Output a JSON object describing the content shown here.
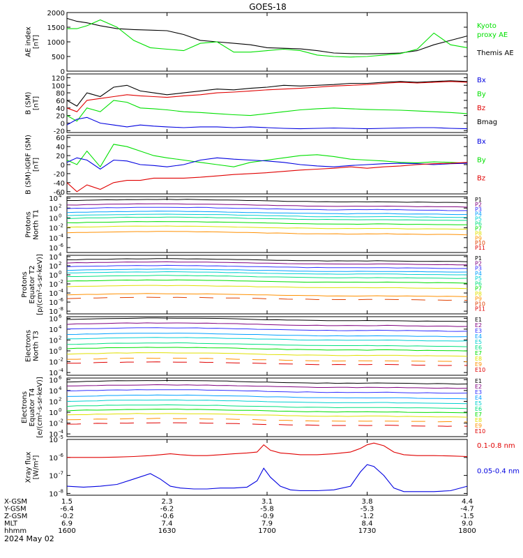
{
  "title": "GOES-18",
  "date": "2024 May 02",
  "time_axis": {
    "tick_times": [
      "1600",
      "1630",
      "1700",
      "1730",
      "1800"
    ],
    "rows": [
      {
        "label": "X-GSM",
        "values": [
          "1.5",
          "2.3",
          "3.1",
          "3.8",
          "4.4"
        ]
      },
      {
        "label": "Y-GSM",
        "values": [
          "-6.4",
          "-6.2",
          "-5.8",
          "-5.3",
          "-4.7"
        ]
      },
      {
        "label": "Z-GSM",
        "values": [
          "-0.2",
          "-0.6",
          "-0.9",
          "-1.2",
          "-1.5"
        ]
      },
      {
        "label": "MLT",
        "values": [
          "6.9",
          "7.4",
          "7.9",
          "8.4",
          "9.0"
        ]
      },
      {
        "label": "hhmm",
        "values": [
          "1600",
          "1630",
          "1700",
          "1730",
          "1800"
        ]
      }
    ]
  },
  "colors": {
    "black": "#000000",
    "green": "#00e000",
    "red": "#e00000",
    "blue": "#0000e0",
    "P": [
      "#000000",
      "#800080",
      "#3030ff",
      "#00a0ff",
      "#00d0d0",
      "#00e080",
      "#00e000",
      "#e0e000",
      "#ff9000",
      "#e04000",
      "#e00000"
    ],
    "E": [
      "#000000",
      "#800080",
      "#3030ff",
      "#00a0ff",
      "#00d0d0",
      "#00e080",
      "#00e000",
      "#e0e000",
      "#ff9000",
      "#e00000"
    ]
  },
  "chart_data": [
    {
      "type": "line",
      "ylabel": [
        "AE index",
        "[nT]"
      ],
      "ylim": [
        0,
        2000
      ],
      "yticks": [
        {
          "v": 0,
          "t": "0"
        },
        {
          "v": 500,
          "t": "500"
        },
        {
          "v": 1000,
          "t": "1000"
        },
        {
          "v": 1500,
          "t": "1500"
        },
        {
          "v": 2000,
          "t": "2000"
        }
      ],
      "legend": [
        {
          "text": "Kyoto",
          "color": "#00e000"
        },
        {
          "text": "proxy AE",
          "color": "#00e000"
        },
        {
          "text": "",
          "color": "#000"
        },
        {
          "text": "Themis AE",
          "color": "#000000"
        }
      ],
      "x": [
        0,
        3,
        6,
        10,
        15,
        20,
        25,
        30,
        35,
        40,
        45,
        50,
        55,
        60,
        65,
        70,
        75,
        80,
        85,
        90,
        95,
        100,
        105,
        110,
        115,
        120
      ],
      "series": [
        {
          "name": "Themis AE",
          "color": "#000000",
          "values": [
            1800,
            1700,
            1650,
            1550,
            1450,
            1420,
            1400,
            1380,
            1250,
            1050,
            1000,
            950,
            900,
            800,
            780,
            760,
            700,
            620,
            600,
            590,
            600,
            620,
            700,
            900,
            1050,
            1200
          ]
        },
        {
          "name": "Kyoto proxy AE",
          "color": "#00e000",
          "values": [
            1450,
            1450,
            1550,
            1750,
            1500,
            1050,
            800,
            750,
            700,
            950,
            1000,
            650,
            650,
            700,
            750,
            700,
            550,
            500,
            480,
            500,
            550,
            600,
            750,
            1300,
            900,
            800
          ]
        }
      ]
    },
    {
      "type": "line",
      "ylabel": [
        "B (SM)",
        "[nT]"
      ],
      "ylim": [
        -25,
        130
      ],
      "yticks": [
        {
          "v": -20,
          "t": "-20"
        },
        {
          "v": 0,
          "t": "0"
        },
        {
          "v": 20,
          "t": "20"
        },
        {
          "v": 40,
          "t": "40"
        },
        {
          "v": 60,
          "t": "60"
        },
        {
          "v": 80,
          "t": "80"
        },
        {
          "v": 100,
          "t": "100"
        },
        {
          "v": 120,
          "t": "120"
        }
      ],
      "legend": [
        {
          "text": "Bx",
          "color": "#0000e0"
        },
        {
          "text": "By",
          "color": "#00e000"
        },
        {
          "text": "Bz",
          "color": "#e00000"
        },
        {
          "text": "Bmag",
          "color": "#000000"
        }
      ],
      "x": [
        0,
        3,
        6,
        10,
        14,
        18,
        22,
        26,
        30,
        35,
        40,
        45,
        50,
        55,
        60,
        65,
        70,
        75,
        80,
        85,
        90,
        95,
        100,
        105,
        110,
        115,
        120
      ],
      "series": [
        {
          "name": "Bmag",
          "color": "#000000",
          "values": [
            60,
            45,
            80,
            70,
            95,
            100,
            85,
            80,
            75,
            80,
            85,
            90,
            88,
            92,
            95,
            100,
            98,
            100,
            102,
            105,
            105,
            108,
            110,
            108,
            110,
            112,
            110
          ]
        },
        {
          "name": "Bz",
          "color": "#e00000",
          "values": [
            40,
            30,
            60,
            65,
            70,
            75,
            72,
            70,
            68,
            72,
            75,
            80,
            82,
            85,
            88,
            90,
            92,
            95,
            98,
            100,
            102,
            105,
            108,
            106,
            108,
            110,
            108
          ]
        },
        {
          "name": "By",
          "color": "#00e000",
          "values": [
            20,
            5,
            40,
            30,
            60,
            55,
            40,
            38,
            35,
            30,
            28,
            25,
            22,
            20,
            25,
            30,
            35,
            38,
            40,
            38,
            36,
            35,
            34,
            32,
            30,
            28,
            25
          ]
        },
        {
          "name": "Bx",
          "color": "#0000e0",
          "values": [
            -5,
            10,
            15,
            0,
            -5,
            -10,
            -5,
            -8,
            -10,
            -12,
            -10,
            -10,
            -12,
            -10,
            -12,
            -14,
            -15,
            -14,
            -13,
            -14,
            -15,
            -14,
            -13,
            -12,
            -12,
            -14,
            -15
          ]
        }
      ]
    },
    {
      "type": "line",
      "ylabel": [
        "B (SM)-IGRF (SM)",
        "[nT]"
      ],
      "ylim": [
        -65,
        65
      ],
      "yticks": [
        {
          "v": -60,
          "t": "-60"
        },
        {
          "v": -40,
          "t": "-40"
        },
        {
          "v": -20,
          "t": "-20"
        },
        {
          "v": 0,
          "t": "0"
        },
        {
          "v": 20,
          "t": "20"
        },
        {
          "v": 40,
          "t": "40"
        },
        {
          "v": 60,
          "t": "60"
        }
      ],
      "legend": [
        {
          "text": "Bx",
          "color": "#0000e0"
        },
        {
          "text": "By",
          "color": "#00e000"
        },
        {
          "text": "Bz",
          "color": "#e00000"
        }
      ],
      "x": [
        0,
        3,
        6,
        10,
        14,
        18,
        22,
        26,
        30,
        35,
        40,
        45,
        50,
        55,
        60,
        65,
        70,
        75,
        80,
        85,
        90,
        95,
        100,
        105,
        110,
        115,
        120
      ],
      "series": [
        {
          "name": "By",
          "color": "#00e000",
          "values": [
            10,
            0,
            30,
            -5,
            45,
            40,
            30,
            20,
            15,
            10,
            5,
            0,
            -5,
            5,
            10,
            15,
            20,
            22,
            18,
            12,
            10,
            8,
            5,
            4,
            6,
            5,
            3
          ]
        },
        {
          "name": "Bx",
          "color": "#0000e0",
          "values": [
            5,
            15,
            10,
            -10,
            10,
            8,
            0,
            -2,
            -5,
            0,
            10,
            15,
            12,
            10,
            8,
            5,
            0,
            -3,
            -5,
            -2,
            0,
            2,
            3,
            2,
            0,
            2,
            3
          ]
        },
        {
          "name": "Bz",
          "color": "#e00000",
          "values": [
            -40,
            -60,
            -45,
            -55,
            -40,
            -35,
            -35,
            -30,
            -30,
            -30,
            -28,
            -25,
            -22,
            -20,
            -18,
            -15,
            -12,
            -10,
            -8,
            -5,
            -8,
            -5,
            -3,
            0,
            2,
            3,
            5
          ]
        }
      ]
    },
    {
      "type": "line",
      "log": true,
      "ylabel": [
        "Protons",
        "North T1"
      ],
      "ylim": [
        -7,
        4.3
      ],
      "yticks": [
        {
          "v": 4,
          "t": "10"
        },
        {
          "v": 2,
          "t": "10"
        },
        {
          "v": 0,
          "t": "10"
        },
        {
          "v": -2,
          "t": "10"
        },
        {
          "v": -4,
          "t": "10"
        },
        {
          "v": -6,
          "t": "10"
        }
      ],
      "yexp": [
        "4",
        "2",
        "0",
        "-2",
        "-4",
        "-6"
      ],
      "legend_key": "P",
      "legend": [
        "P1",
        "P2",
        "P3",
        "P4",
        "P5",
        "P6",
        "P7",
        "P8",
        "P9",
        "P10",
        "P11"
      ],
      "levels": [
        3.5,
        2.6,
        1.9,
        1.1,
        0.5,
        -0.1,
        -1.0,
        -1.9,
        -3.0,
        -8,
        -8
      ]
    },
    {
      "type": "line",
      "log": true,
      "ylabel": [
        "Protons",
        "Equator T2",
        "[p/(cm²-s-sr-keV)]"
      ],
      "ylim": [
        -8.6,
        4.3
      ],
      "yticks": [
        {
          "v": 4,
          "t": "10"
        },
        {
          "v": 2,
          "t": "10"
        },
        {
          "v": 0,
          "t": "10"
        },
        {
          "v": -2,
          "t": "10"
        },
        {
          "v": -4,
          "t": "10"
        },
        {
          "v": -6,
          "t": "10"
        },
        {
          "v": -8,
          "t": "10"
        }
      ],
      "yexp": [
        "4",
        "2",
        "0",
        "-2",
        "-4",
        "-6",
        "-8"
      ],
      "legend_key": "P",
      "legend": [
        "P1",
        "P2",
        "P3",
        "P4",
        "P5",
        "P6",
        "P7",
        "P8",
        "P9",
        "P10",
        "P11"
      ],
      "levels": [
        3.3,
        2.6,
        1.8,
        1.0,
        0.4,
        -0.4,
        -1.4,
        -2.6,
        -4.4,
        -5.2,
        -10
      ]
    },
    {
      "type": "line",
      "log": true,
      "ylabel": [
        "Electrons",
        "North T3"
      ],
      "ylim": [
        -4.5,
        6.3
      ],
      "yticks": [
        {
          "v": 6,
          "t": "10"
        },
        {
          "v": 4,
          "t": "10"
        },
        {
          "v": 2,
          "t": "10"
        },
        {
          "v": 0,
          "t": "10"
        },
        {
          "v": -2,
          "t": "10"
        },
        {
          "v": -4,
          "t": "10"
        }
      ],
      "yexp": [
        "6",
        "4",
        "2",
        "0",
        "-2",
        "-4"
      ],
      "legend_key": "E",
      "legend": [
        "E1",
        "E2",
        "E3",
        "E4",
        "E5",
        "E6",
        "E7",
        "E8",
        "E9",
        "E10"
      ],
      "levels": [
        5.8,
        4.9,
        4.0,
        3.0,
        2.2,
        1.2,
        0.4,
        -0.6,
        -1.6,
        -2.3
      ]
    },
    {
      "type": "line",
      "log": true,
      "ylabel": [
        "Electrons",
        "Equator T4",
        "[e/(cm²-s-sr-keV)]"
      ],
      "ylim": [
        -4.5,
        6.3
      ],
      "yticks": [
        {
          "v": 6,
          "t": "10"
        },
        {
          "v": 4,
          "t": "10"
        },
        {
          "v": 2,
          "t": "10"
        },
        {
          "v": 0,
          "t": "10"
        },
        {
          "v": -2,
          "t": "10"
        },
        {
          "v": -4,
          "t": "10"
        }
      ],
      "yexp": [
        "6",
        "4",
        "2",
        "0",
        "-2",
        "-4"
      ],
      "legend_key": "E",
      "legend": [
        "E1",
        "E2",
        "E3",
        "E4",
        "E5",
        "E6",
        "E7",
        "E8",
        "E9",
        "E10"
      ],
      "levels": [
        5.6,
        4.8,
        3.9,
        2.9,
        2.0,
        1.1,
        0.3,
        -0.5,
        -1.4,
        -2.2
      ]
    },
    {
      "type": "line",
      "log": true,
      "ylabel": [
        "Xray flux",
        "[W/m²]"
      ],
      "ylim": [
        -8.1,
        -5
      ],
      "yticks": [
        {
          "v": -5,
          "t": "10"
        },
        {
          "v": -6,
          "t": "10"
        },
        {
          "v": -7,
          "t": "10"
        },
        {
          "v": -8,
          "t": "10"
        }
      ],
      "yexp": [
        "-5",
        "-6",
        "-7",
        "-8"
      ],
      "legend": [
        {
          "text": "0.1-0.8 nm",
          "color": "#e00000"
        },
        {
          "text": "0.05-0.4 nm",
          "color": "#0000e0"
        }
      ],
      "x": [
        0,
        5,
        10,
        15,
        20,
        25,
        28,
        31,
        34,
        38,
        42,
        46,
        50,
        54,
        57,
        59,
        61,
        64,
        67,
        70,
        75,
        80,
        85,
        88,
        90,
        92,
        95,
        98,
        101,
        105,
        110,
        115,
        120
      ],
      "series": [
        {
          "name": "0.1-0.8 nm",
          "color": "#e00000",
          "values": [
            -6.0,
            -6.0,
            -6.0,
            -5.98,
            -5.95,
            -5.9,
            -5.85,
            -5.8,
            -5.85,
            -5.9,
            -5.9,
            -5.85,
            -5.8,
            -5.75,
            -5.7,
            -5.3,
            -5.6,
            -5.75,
            -5.8,
            -5.85,
            -5.85,
            -5.8,
            -5.7,
            -5.5,
            -5.3,
            -5.2,
            -5.35,
            -5.7,
            -5.85,
            -5.9,
            -5.9,
            -5.92,
            -5.95
          ]
        },
        {
          "name": "0.05-0.4 nm",
          "color": "#0000e0",
          "values": [
            -7.6,
            -7.65,
            -7.6,
            -7.5,
            -7.2,
            -6.9,
            -7.2,
            -7.6,
            -7.7,
            -7.75,
            -7.75,
            -7.7,
            -7.7,
            -7.65,
            -7.3,
            -6.6,
            -7.1,
            -7.6,
            -7.8,
            -7.85,
            -7.85,
            -7.8,
            -7.6,
            -6.8,
            -6.4,
            -6.5,
            -7.0,
            -7.7,
            -7.9,
            -7.9,
            -7.9,
            -7.85,
            -7.6
          ]
        }
      ]
    }
  ]
}
